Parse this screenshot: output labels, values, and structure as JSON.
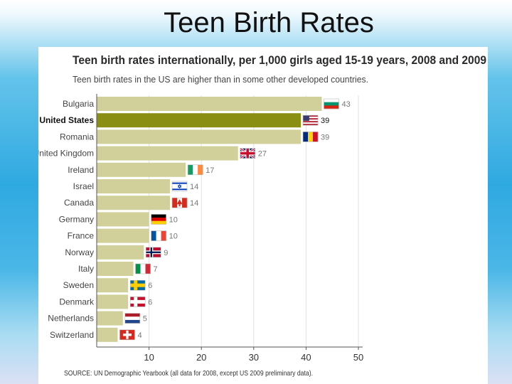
{
  "slide": {
    "title": "Teen Birth Rates"
  },
  "colors": {
    "bar": "#d1d09a",
    "bar_highlight": "#8a8e12",
    "axis": "#555555",
    "grid": "#e2e2e2",
    "title_text": "#2a2a2a",
    "label_text": "#444444",
    "value_text": "#777777",
    "label_highlight": "#111111"
  },
  "chart_data": {
    "type": "bar",
    "orientation": "horizontal",
    "title": "Teen birth rates internationally, per 1,000 girls aged 15-19 years, 2008 and 2009",
    "subtitle": "Teen birth rates in the US are higher than in some other developed countries.",
    "categories": [
      "Bulgaria",
      "United States",
      "Romania",
      "United Kingdom",
      "Ireland",
      "Israel",
      "Canada",
      "Germany",
      "France",
      "Norway",
      "Italy",
      "Sweden",
      "Denmark",
      "Netherlands",
      "Switzerland"
    ],
    "values": [
      43,
      39,
      39,
      27,
      17,
      14,
      14,
      10,
      10,
      9,
      7,
      6,
      6,
      5,
      4
    ],
    "highlight": "United States",
    "flags": [
      "flag-bulgaria",
      "flag-united-states",
      "flag-romania",
      "flag-united-kingdom",
      "flag-ireland",
      "flag-israel",
      "flag-canada",
      "flag-germany",
      "flag-france",
      "flag-norway",
      "flag-italy",
      "flag-sweden",
      "flag-denmark",
      "flag-netherlands",
      "flag-switzerland"
    ],
    "xticks": [
      10,
      20,
      30,
      40,
      50
    ],
    "xlim": [
      0,
      50
    ],
    "xlabel": "",
    "ylabel": "",
    "source": "SOURCE: UN Demographic Yearbook (all data for 2008, except US 2009 preliminary data)."
  }
}
